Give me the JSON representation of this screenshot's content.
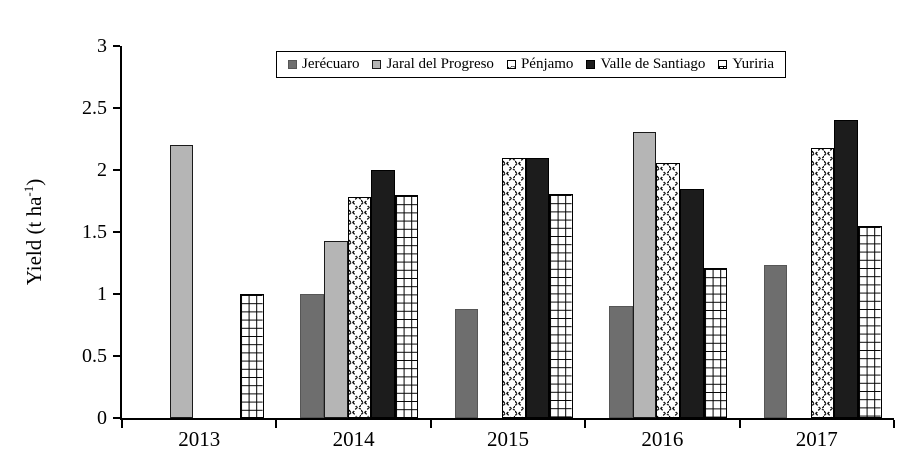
{
  "figure": {
    "ylabel_prefix": "Yield (t ha",
    "ylabel_sup": "-1",
    "ylabel_suffix": ")"
  },
  "chart_data": {
    "type": "bar",
    "title": "",
    "xlabel": "",
    "ylabel": "Yield (t ha^-1)",
    "ylim": [
      0,
      3
    ],
    "ytick_step": 0.5,
    "ytick_labels": [
      "0",
      "0.5",
      "1",
      "1.5",
      "2",
      "2.5",
      "3"
    ],
    "grid": false,
    "legend_position": "top-center",
    "categories": [
      "2013",
      "2014",
      "2015",
      "2016",
      "2017"
    ],
    "series": [
      {
        "name": "Jerécuaro",
        "pattern": "solid",
        "fill": "#6e6e6e",
        "border": "#565656",
        "values": [
          null,
          1.0,
          0.88,
          0.9,
          1.23
        ]
      },
      {
        "name": "Jaral del Progreso",
        "pattern": "solid",
        "fill": "#b5b5b5",
        "border": "#1a1a1a",
        "values": [
          2.2,
          1.43,
          null,
          2.31,
          null
        ]
      },
      {
        "name": "Pénjamo",
        "pattern": "scale",
        "fill": "#ffffff",
        "border": "#000000",
        "values": [
          null,
          1.78,
          2.1,
          2.06,
          2.18
        ]
      },
      {
        "name": "Valle de Santiago",
        "pattern": "solid",
        "fill": "#1c1c1c",
        "border": "#000000",
        "values": [
          null,
          2.0,
          2.1,
          1.85,
          2.4
        ]
      },
      {
        "name": "Yuriria",
        "pattern": "grid",
        "fill": "#ffffff",
        "border": "#000000",
        "values": [
          1.0,
          1.8,
          1.81,
          1.21,
          1.55
        ]
      }
    ]
  }
}
